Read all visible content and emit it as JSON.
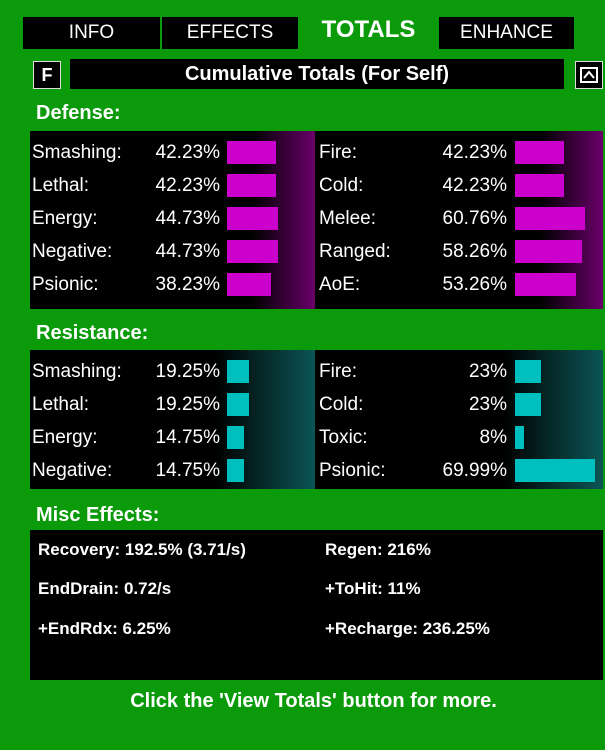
{
  "tabs": [
    {
      "label": "INFO",
      "active": false
    },
    {
      "label": "EFFECTS",
      "active": false
    },
    {
      "label": "TOTALS",
      "active": true
    },
    {
      "label": "ENHANCE",
      "active": false
    }
  ],
  "header": {
    "left_button": "F",
    "title": "Cumulative Totals (For Self)"
  },
  "defense": {
    "title": "Defense:",
    "left": [
      {
        "label": "Smashing:",
        "value": "42.23%",
        "fill": 42.23
      },
      {
        "label": "Lethal:",
        "value": "42.23%",
        "fill": 42.23
      },
      {
        "label": "Energy:",
        "value": "44.73%",
        "fill": 44.73
      },
      {
        "label": "Negative:",
        "value": "44.73%",
        "fill": 44.73
      },
      {
        "label": "Psionic:",
        "value": "38.23%",
        "fill": 38.23
      }
    ],
    "right": [
      {
        "label": "Fire:",
        "value": "42.23%",
        "fill": 42.23
      },
      {
        "label": "Cold:",
        "value": "42.23%",
        "fill": 42.23
      },
      {
        "label": "Melee:",
        "value": "60.76%",
        "fill": 60.76
      },
      {
        "label": "Ranged:",
        "value": "58.26%",
        "fill": 58.26
      },
      {
        "label": "AoE:",
        "value": "53.26%",
        "fill": 53.26
      }
    ]
  },
  "resistance": {
    "title": "Resistance:",
    "left": [
      {
        "label": "Smashing:",
        "value": "19.25%",
        "fill": 19.25
      },
      {
        "label": "Lethal:",
        "value": "19.25%",
        "fill": 19.25
      },
      {
        "label": "Energy:",
        "value": "14.75%",
        "fill": 14.75
      },
      {
        "label": "Negative:",
        "value": "14.75%",
        "fill": 14.75
      }
    ],
    "right": [
      {
        "label": "Fire:",
        "value": "23%",
        "fill": 23
      },
      {
        "label": "Cold:",
        "value": "23%",
        "fill": 23
      },
      {
        "label": "Toxic:",
        "value": "8%",
        "fill": 8
      },
      {
        "label": "Psionic:",
        "value": "69.99%",
        "fill": 69.99
      }
    ]
  },
  "misc": {
    "title": "Misc Effects:",
    "items": [
      "Recovery: 192.5% (3.71/s)",
      "Regen: 216%",
      "EndDrain: 0.72/s",
      "+ToHit: 11%",
      "+EndRdx: 6.25%",
      "+Recharge: 236.25%"
    ]
  },
  "footer": "Click the 'View Totals' button for more.",
  "colors": {
    "frame": "#0a9a0a",
    "defense_bar": "#cc00cc",
    "resistance_bar": "#00bfbf"
  },
  "icons": {
    "right_button": "window-toggle-icon"
  }
}
